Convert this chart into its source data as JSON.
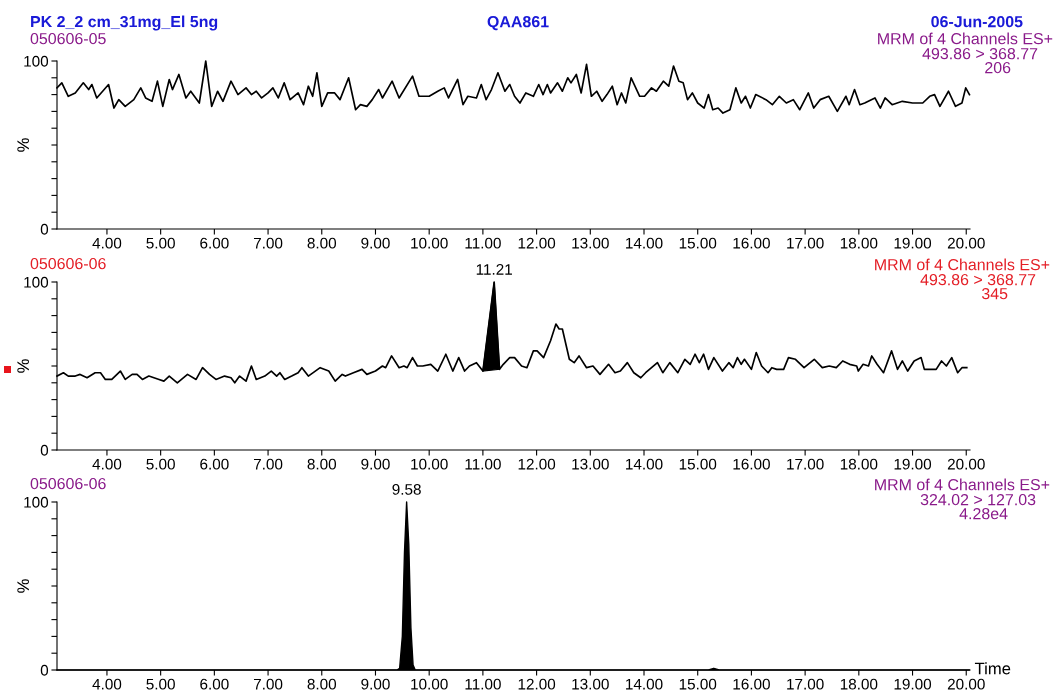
{
  "chart_data": [
    {
      "type": "line",
      "title": "QAA861",
      "ylabel": "%",
      "xlim": [
        3.07,
        20.07
      ],
      "ylim": [
        0,
        100
      ],
      "xticks": [
        {
          "value": 4,
          "label": "4.00"
        },
        {
          "value": 5,
          "label": "5.00"
        },
        {
          "value": 6,
          "label": "6.00"
        },
        {
          "value": 7,
          "label": "7.00"
        },
        {
          "value": 8,
          "label": "8.00"
        },
        {
          "value": 9,
          "label": "9.00"
        },
        {
          "value": 10,
          "label": "10.00"
        },
        {
          "value": 11,
          "label": "11.00"
        },
        {
          "value": 12,
          "label": "12.00"
        },
        {
          "value": 13,
          "label": "13.00"
        },
        {
          "value": 14,
          "label": "14.00"
        },
        {
          "value": 15,
          "label": "15.00"
        },
        {
          "value": 16,
          "label": "16.00"
        },
        {
          "value": 17,
          "label": "17.00"
        },
        {
          "value": 18,
          "label": "18.00"
        },
        {
          "value": 19,
          "label": "19.00"
        },
        {
          "value": 20,
          "label": "20.00"
        }
      ],
      "yticks": [
        0,
        {
          "value": 10,
          "label": null
        },
        {
          "value": 20,
          "label": null
        },
        {
          "value": 30,
          "label": null
        },
        {
          "value": 40,
          "label": null
        },
        {
          "value": 50,
          "label": null
        },
        {
          "value": 60,
          "label": null
        },
        {
          "value": 70,
          "label": null
        },
        {
          "value": 80,
          "label": null
        },
        {
          "value": 90,
          "label": null
        },
        100
      ],
      "annotations": [
        "PK 2_2 cm_31mg_El 5ng",
        "06-Jun-2005",
        "050606-05",
        "MRM of 4 Channels ES+",
        "493.86 > 368.77",
        "206"
      ],
      "series": [
        {
          "color": "#000000",
          "x": [
            3.07,
            3.16,
            3.28,
            3.41,
            3.56,
            3.66,
            3.72,
            3.81,
            4.03,
            4.13,
            4.22,
            4.34,
            4.5,
            4.63,
            4.72,
            4.84,
            4.94,
            5.04,
            5.16,
            5.22,
            5.34,
            5.47,
            5.56,
            5.72,
            5.84,
            5.95,
            6.06,
            6.16,
            6.31,
            6.44,
            6.59,
            6.69,
            6.78,
            6.88,
            7.0,
            7.09,
            7.19,
            7.3,
            7.41,
            7.56,
            7.66,
            7.75,
            7.83,
            7.91,
            8.0,
            8.11,
            8.24,
            8.34,
            8.5,
            8.63,
            8.72,
            8.84,
            8.94,
            9.06,
            9.13,
            9.31,
            9.44,
            9.69,
            9.81,
            10.0,
            10.16,
            10.28,
            10.36,
            10.53,
            10.63,
            10.72,
            10.88,
            10.97,
            11.06,
            11.16,
            11.28,
            11.41,
            11.5,
            11.59,
            11.69,
            11.8,
            11.94,
            12.04,
            12.12,
            12.2,
            12.26,
            12.39,
            12.48,
            12.58,
            12.64,
            12.74,
            12.83,
            12.93,
            13.02,
            13.12,
            13.22,
            13.31,
            13.41,
            13.5,
            13.58,
            13.66,
            13.76,
            13.92,
            14.01,
            14.14,
            14.23,
            14.36,
            14.46,
            14.55,
            14.65,
            14.73,
            14.81,
            14.9,
            15.0,
            15.12,
            15.2,
            15.28,
            15.38,
            15.47,
            15.6,
            15.71,
            15.81,
            15.89,
            15.98,
            16.08,
            16.27,
            16.39,
            16.52,
            16.65,
            16.78,
            16.9,
            17.06,
            17.16,
            17.28,
            17.44,
            17.6,
            17.76,
            17.82,
            17.92,
            18.02,
            18.11,
            18.3,
            18.4,
            18.49,
            18.62,
            18.81,
            19.0,
            19.19,
            19.32,
            19.41,
            19.51,
            19.67,
            19.8,
            19.92,
            19.99,
            20.06
          ],
          "values": [
            84,
            87,
            79,
            81,
            87,
            83,
            86,
            78,
            86,
            72,
            77,
            73,
            77,
            84,
            78,
            76,
            88,
            73,
            89,
            83,
            92,
            78,
            82,
            75,
            100,
            73,
            82,
            76,
            88,
            80,
            84,
            80,
            82,
            78,
            81,
            84,
            78,
            87,
            77,
            81,
            74,
            85,
            79,
            93,
            73,
            81,
            81,
            77,
            90,
            71,
            74,
            73,
            77,
            83,
            78,
            88,
            78,
            91,
            79,
            79,
            82,
            84,
            78,
            89,
            74,
            79,
            78,
            86,
            77,
            83,
            93,
            82,
            86,
            79,
            75,
            81,
            79,
            86,
            80,
            86,
            81,
            87,
            82,
            90,
            87,
            92,
            81,
            98,
            79,
            82,
            76,
            80,
            85,
            74,
            81,
            75,
            90,
            79,
            79,
            84,
            82,
            88,
            85,
            97,
            88,
            87,
            77,
            81,
            75,
            72,
            80,
            71,
            72,
            69,
            71,
            84,
            75,
            79,
            72,
            80,
            77,
            74,
            79,
            75,
            77,
            71,
            81,
            72,
            77,
            79,
            70,
            79,
            74,
            83,
            74,
            75,
            78,
            72,
            78,
            74,
            76,
            75,
            75,
            79,
            80,
            73,
            82,
            73,
            75,
            84,
            80
          ]
        }
      ]
    },
    {
      "type": "line",
      "ylabel": "%",
      "xlim": [
        3.07,
        20.07
      ],
      "ylim": [
        0,
        100
      ],
      "xticks": [
        {
          "value": 4,
          "label": "4.00"
        },
        {
          "value": 5,
          "label": "5.00"
        },
        {
          "value": 6,
          "label": "6.00"
        },
        {
          "value": 7,
          "label": "7.00"
        },
        {
          "value": 8,
          "label": "8.00"
        },
        {
          "value": 9,
          "label": "9.00"
        },
        {
          "value": 10,
          "label": "10.00"
        },
        {
          "value": 11,
          "label": "11.00"
        },
        {
          "value": 12,
          "label": "12.00"
        },
        {
          "value": 13,
          "label": "13.00"
        },
        {
          "value": 14,
          "label": "14.00"
        },
        {
          "value": 15,
          "label": "15.00"
        },
        {
          "value": 16,
          "label": "16.00"
        },
        {
          "value": 17,
          "label": "17.00"
        },
        {
          "value": 18,
          "label": "18.00"
        },
        {
          "value": 19,
          "label": "19.00"
        },
        {
          "value": 20,
          "label": "20.00"
        }
      ],
      "yticks": [
        0,
        {
          "value": 10,
          "label": null
        },
        {
          "value": 20,
          "label": null
        },
        {
          "value": 30,
          "label": null
        },
        {
          "value": 40,
          "label": null
        },
        {
          "value": 50,
          "label": null
        },
        {
          "value": 60,
          "label": null
        },
        {
          "value": 70,
          "label": null
        },
        {
          "value": 80,
          "label": null
        },
        {
          "value": 90,
          "label": null
        },
        100
      ],
      "annotations": [
        "050606-06",
        "MRM of 4 Channels ES+",
        "493.86 > 368.77",
        "345",
        {
          "text": "11.21",
          "x": 11.21,
          "y": 100
        }
      ],
      "series": [
        {
          "color": "#000000",
          "x": [
            3.07,
            3.19,
            3.28,
            3.41,
            3.5,
            3.63,
            3.78,
            3.88,
            3.97,
            4.09,
            4.25,
            4.34,
            4.47,
            4.56,
            4.66,
            4.78,
            4.97,
            5.06,
            5.16,
            5.31,
            5.5,
            5.66,
            5.78,
            5.91,
            6.03,
            6.19,
            6.31,
            6.38,
            6.47,
            6.59,
            6.69,
            6.78,
            6.94,
            7.06,
            7.16,
            7.22,
            7.31,
            7.44,
            7.56,
            7.63,
            7.75,
            7.97,
            8.13,
            8.25,
            8.38,
            8.44,
            8.59,
            8.75,
            8.84,
            9.0,
            9.13,
            9.19,
            9.3,
            9.44,
            9.53,
            9.59,
            9.69,
            9.78,
            9.88,
            10.03,
            10.16,
            10.31,
            10.44,
            10.55,
            10.66,
            10.75,
            10.88,
            11.0,
            11.21,
            11.31,
            11.38,
            11.5,
            11.59,
            11.72,
            11.82,
            11.94,
            12.01,
            12.13,
            12.26,
            12.36,
            12.42,
            12.48,
            12.61,
            12.7,
            12.79,
            12.93,
            13.05,
            13.18,
            13.34,
            13.46,
            13.56,
            13.69,
            13.81,
            13.94,
            14.03,
            14.25,
            14.35,
            14.48,
            14.63,
            14.76,
            14.86,
            14.95,
            15.03,
            15.11,
            15.2,
            15.3,
            15.46,
            15.58,
            15.66,
            15.74,
            15.81,
            15.87,
            16.0,
            16.09,
            16.19,
            16.31,
            16.38,
            16.47,
            16.6,
            16.69,
            16.82,
            16.98,
            17.17,
            17.32,
            17.45,
            17.58,
            17.7,
            17.83,
            17.96,
            17.99,
            18.08,
            18.18,
            18.24,
            18.34,
            18.46,
            18.61,
            18.72,
            18.81,
            18.91,
            19.03,
            19.16,
            19.22,
            19.35,
            19.44,
            19.54,
            19.63,
            19.73,
            19.84,
            19.92,
            20.01
          ],
          "values": [
            44,
            46,
            44,
            44,
            45,
            43,
            46,
            46,
            42,
            42,
            47,
            42,
            45,
            45,
            42,
            44,
            42,
            41,
            44,
            40,
            45,
            42,
            49,
            45,
            42,
            44,
            43,
            40,
            44,
            41,
            50,
            42,
            44,
            47,
            44,
            46,
            42,
            44,
            46,
            49,
            44,
            49,
            47,
            41,
            45,
            44,
            46,
            48,
            45,
            47,
            50,
            49,
            56,
            49,
            50,
            49,
            55,
            50,
            50,
            51,
            47,
            57,
            47,
            55,
            47,
            50,
            52,
            47,
            100,
            48,
            51,
            55,
            55,
            50,
            49,
            59,
            59,
            55,
            65,
            75,
            72,
            72,
            54,
            52,
            56,
            49,
            50,
            45,
            51,
            46,
            47,
            52,
            46,
            43,
            46,
            52,
            46,
            52,
            46,
            54,
            51,
            57,
            52,
            57,
            48,
            55,
            47,
            52,
            49,
            55,
            51,
            54,
            48,
            58,
            50,
            46,
            49,
            48,
            48,
            55,
            54,
            49,
            54,
            49,
            50,
            49,
            53,
            51,
            50,
            47,
            51,
            50,
            56,
            51,
            46,
            59,
            48,
            53,
            47,
            53,
            55,
            48,
            48,
            48,
            53,
            50,
            55,
            46,
            49,
            49
          ]
        }
      ]
    },
    {
      "type": "area",
      "ylabel": "%",
      "xlabel": "Time",
      "xlim": [
        3.07,
        20.07
      ],
      "ylim": [
        0,
        100
      ],
      "xticks": [
        {
          "value": 4,
          "label": "4.00"
        },
        {
          "value": 5,
          "label": "5.00"
        },
        {
          "value": 6,
          "label": "6.00"
        },
        {
          "value": 7,
          "label": "7.00"
        },
        {
          "value": 8,
          "label": "8.00"
        },
        {
          "value": 9,
          "label": "9.00"
        },
        {
          "value": 10,
          "label": "10.00"
        },
        {
          "value": 11,
          "label": "11.00"
        },
        {
          "value": 12,
          "label": "12.00"
        },
        {
          "value": 13,
          "label": "13.00"
        },
        {
          "value": 14,
          "label": "14.00"
        },
        {
          "value": 15,
          "label": "15.00"
        },
        {
          "value": 16,
          "label": "16.00"
        },
        {
          "value": 17,
          "label": "17.00"
        },
        {
          "value": 18,
          "label": "18.00"
        },
        {
          "value": 19,
          "label": "19.00"
        },
        {
          "value": 20,
          "label": "20.00"
        }
      ],
      "yticks": [
        0,
        {
          "value": 10,
          "label": null
        },
        {
          "value": 20,
          "label": null
        },
        {
          "value": 30,
          "label": null
        },
        {
          "value": 40,
          "label": null
        },
        {
          "value": 50,
          "label": null
        },
        {
          "value": 60,
          "label": null
        },
        {
          "value": 70,
          "label": null
        },
        {
          "value": 80,
          "label": null
        },
        {
          "value": 90,
          "label": null
        },
        100
      ],
      "annotations": [
        "050606-06",
        "MRM of 4 Channels ES+",
        "324.02 > 127.03",
        "4.28e4",
        {
          "text": "9.58",
          "x": 9.58,
          "y": 100
        }
      ],
      "series": [
        {
          "color": "#000000",
          "x": [
            3.07,
            5.0,
            7.0,
            9.4,
            9.45,
            9.5,
            9.54,
            9.58,
            9.62,
            9.66,
            9.7,
            9.74,
            12.0,
            15.2,
            15.3,
            15.4,
            20.06
          ],
          "values": [
            0,
            0,
            0,
            0,
            1,
            20,
            70,
            100,
            75,
            25,
            3,
            0,
            0,
            0,
            1,
            0,
            0
          ]
        }
      ]
    }
  ]
}
